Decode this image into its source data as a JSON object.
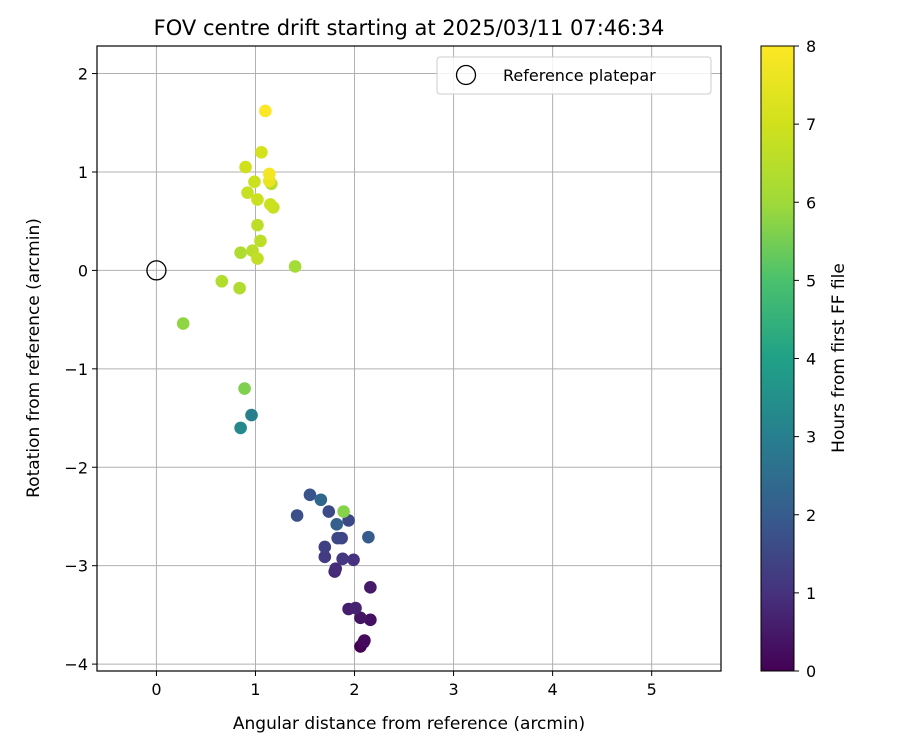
{
  "chart_data": {
    "type": "scatter",
    "title": "FOV centre drift starting at 2025/03/11 07:46:34",
    "xlabel": "Angular distance from reference (arcmin)",
    "ylabel": "Rotation from reference (arcmin)",
    "xlim": [
      -0.6,
      5.7
    ],
    "ylim": [
      -4.07,
      2.28
    ],
    "xticks": [
      0,
      1,
      2,
      3,
      4,
      5
    ],
    "yticks": [
      -4,
      -3,
      -2,
      -1,
      0,
      1,
      2
    ],
    "grid": true,
    "legend": {
      "placement": "top-right",
      "entries": [
        "Reference platepar"
      ]
    },
    "reference_point": {
      "label": "Reference platepar",
      "x": 0,
      "y": 0,
      "marker": "open-circle"
    },
    "colorbar": {
      "label": "Hours from first FF file",
      "colormap": "viridis",
      "range": [
        0,
        8
      ],
      "ticks": [
        0,
        1,
        2,
        3,
        4,
        5,
        6,
        7,
        8
      ]
    },
    "points": [
      {
        "x": 2.06,
        "y": -3.82,
        "c": 0.0
      },
      {
        "x": 2.09,
        "y": -3.78,
        "c": 0.1
      },
      {
        "x": 2.1,
        "y": -3.76,
        "c": 0.2
      },
      {
        "x": 2.16,
        "y": -3.55,
        "c": 0.3
      },
      {
        "x": 2.06,
        "y": -3.53,
        "c": 0.4
      },
      {
        "x": 2.16,
        "y": -3.22,
        "c": 0.5
      },
      {
        "x": 1.94,
        "y": -3.44,
        "c": 0.6
      },
      {
        "x": 2.01,
        "y": -3.43,
        "c": 0.7
      },
      {
        "x": 1.8,
        "y": -3.06,
        "c": 0.8
      },
      {
        "x": 1.81,
        "y": -3.03,
        "c": 0.9
      },
      {
        "x": 1.99,
        "y": -2.94,
        "c": 1.0
      },
      {
        "x": 1.88,
        "y": -2.93,
        "c": 1.1
      },
      {
        "x": 1.7,
        "y": -2.91,
        "c": 1.2
      },
      {
        "x": 1.7,
        "y": -2.81,
        "c": 1.3
      },
      {
        "x": 1.87,
        "y": -2.72,
        "c": 1.4
      },
      {
        "x": 1.83,
        "y": -2.72,
        "c": 1.5
      },
      {
        "x": 1.94,
        "y": -2.54,
        "c": 1.55
      },
      {
        "x": 1.74,
        "y": -2.45,
        "c": 1.6
      },
      {
        "x": 1.42,
        "y": -2.49,
        "c": 1.7
      },
      {
        "x": 1.55,
        "y": -2.28,
        "c": 1.8
      },
      {
        "x": 2.14,
        "y": -2.71,
        "c": 2.0
      },
      {
        "x": 1.82,
        "y": -2.58,
        "c": 2.1
      },
      {
        "x": 1.66,
        "y": -2.33,
        "c": 2.3
      },
      {
        "x": 0.96,
        "y": -1.47,
        "c": 3.0
      },
      {
        "x": 0.85,
        "y": -1.6,
        "c": 3.3
      },
      {
        "x": 1.89,
        "y": -2.45,
        "c": 5.7
      },
      {
        "x": 0.89,
        "y": -1.2,
        "c": 5.6
      },
      {
        "x": 0.27,
        "y": -0.54,
        "c": 5.8
      },
      {
        "x": 1.4,
        "y": 0.04,
        "c": 6.1
      },
      {
        "x": 0.84,
        "y": -0.18,
        "c": 6.35
      },
      {
        "x": 0.66,
        "y": -0.11,
        "c": 6.4
      },
      {
        "x": 0.85,
        "y": 0.18,
        "c": 6.3
      },
      {
        "x": 0.97,
        "y": 0.2,
        "c": 6.5
      },
      {
        "x": 1.02,
        "y": 0.12,
        "c": 6.7
      },
      {
        "x": 1.05,
        "y": 0.3,
        "c": 6.6
      },
      {
        "x": 1.02,
        "y": 0.46,
        "c": 6.6
      },
      {
        "x": 1.16,
        "y": 0.88,
        "c": 6.5
      },
      {
        "x": 1.18,
        "y": 0.64,
        "c": 6.8
      },
      {
        "x": 1.15,
        "y": 0.67,
        "c": 6.9
      },
      {
        "x": 1.02,
        "y": 0.72,
        "c": 6.9
      },
      {
        "x": 0.92,
        "y": 0.79,
        "c": 6.8
      },
      {
        "x": 0.99,
        "y": 0.9,
        "c": 6.9
      },
      {
        "x": 0.9,
        "y": 1.05,
        "c": 7.0
      },
      {
        "x": 1.06,
        "y": 1.2,
        "c": 7.1
      },
      {
        "x": 1.14,
        "y": 0.91,
        "c": 7.6
      },
      {
        "x": 1.14,
        "y": 0.98,
        "c": 7.8
      },
      {
        "x": 1.1,
        "y": 1.62,
        "c": 8.0
      }
    ]
  }
}
